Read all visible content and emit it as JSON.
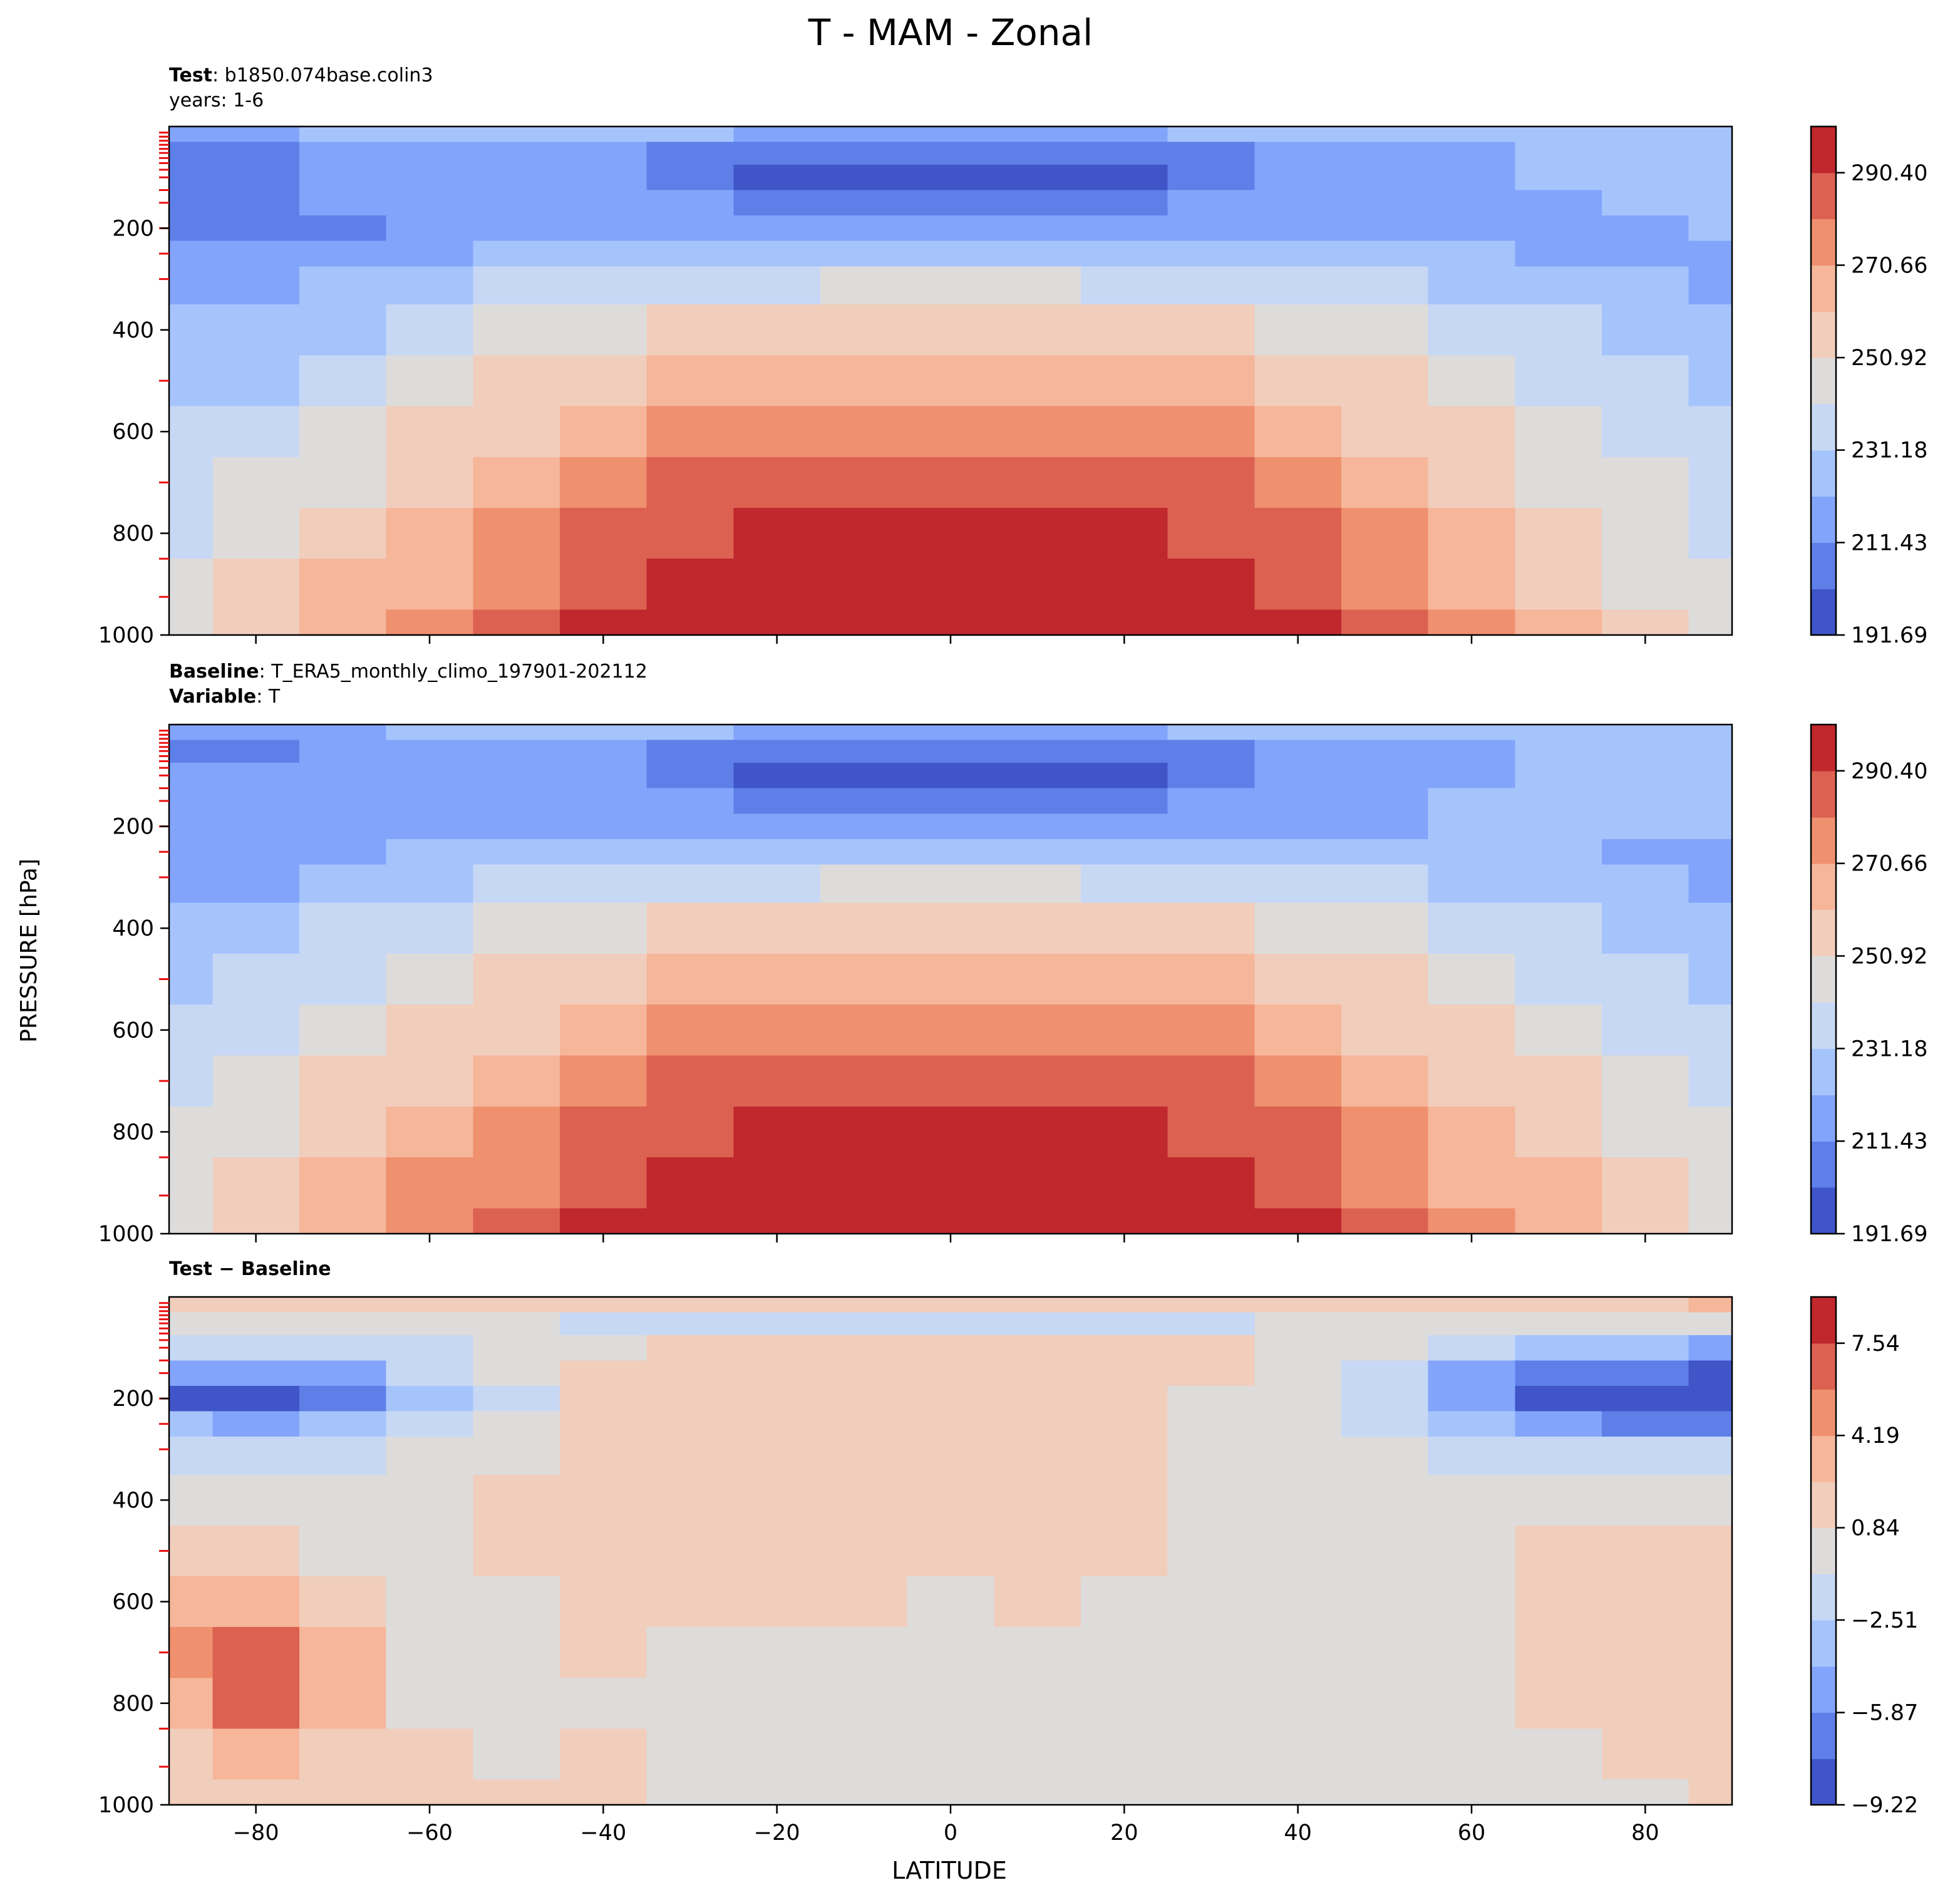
{
  "figure": {
    "title": "T - MAM - Zonal",
    "ylabel": "PRESSURE [hPa]",
    "xlabel": "LATITUDE"
  },
  "chart_data": [
    {
      "type": "heatmap",
      "id": "test",
      "header": [
        {
          "bold": "Test",
          "text": ": b1850.074base.colin3"
        },
        {
          "bold": "",
          "text": "years: 1-6"
        }
      ],
      "x": [
        -90,
        -80,
        -70,
        -60,
        -50,
        -40,
        -30,
        -20,
        -10,
        0,
        10,
        20,
        30,
        40,
        50,
        60,
        70,
        80,
        90
      ],
      "y": [
        10,
        50,
        100,
        150,
        200,
        250,
        300,
        400,
        500,
        600,
        700,
        800,
        900,
        1000
      ],
      "xlim": [
        -90,
        90
      ],
      "ylim": [
        1000,
        0
      ],
      "xticks": [
        -80,
        -60,
        -40,
        -20,
        0,
        20,
        40,
        60,
        80
      ],
      "yticks": [
        200,
        400,
        600,
        800,
        1000
      ],
      "clim": [
        191.69,
        300.27
      ],
      "colorbar_ticks": [
        191.69,
        211.43,
        231.18,
        250.92,
        270.66,
        290.4
      ],
      "colorbar_labels": [
        "191.69",
        "211.43",
        "231.18",
        "250.92",
        "270.66",
        "290.40"
      ],
      "z": [
        [
          221,
          219,
          222,
          224,
          226,
          226,
          224,
          221,
          219,
          218,
          219,
          221,
          224,
          226,
          227,
          228,
          229,
          230,
          231
        ],
        [
          211,
          209,
          213,
          216,
          218,
          214,
          210,
          207,
          205,
          204,
          205,
          207,
          210,
          214,
          218,
          220,
          222,
          223,
          224
        ],
        [
          210,
          208,
          212,
          215,
          217,
          212,
          206,
          200,
          197,
          196,
          197,
          200,
          206,
          212,
          217,
          220,
          222,
          223,
          224
        ],
        [
          209,
          207,
          212,
          215,
          217,
          215,
          212,
          209,
          207,
          206,
          207,
          209,
          212,
          215,
          217,
          219,
          221,
          222,
          223
        ],
        [
          208,
          206,
          211,
          215,
          218,
          219,
          219,
          218,
          218,
          218,
          218,
          218,
          219,
          219,
          218,
          219,
          220,
          221,
          222
        ],
        [
          214,
          214,
          217,
          221,
          225,
          228,
          230,
          231,
          231,
          231,
          231,
          231,
          230,
          228,
          225,
          223,
          221,
          220,
          219
        ],
        [
          219,
          220,
          223,
          228,
          233,
          237,
          240,
          241,
          242,
          242,
          242,
          241,
          240,
          237,
          233,
          229,
          226,
          223,
          221
        ],
        [
          224,
          226,
          231,
          238,
          244,
          249,
          252,
          254,
          254,
          255,
          254,
          254,
          252,
          249,
          244,
          239,
          234,
          229,
          226
        ],
        [
          228,
          231,
          237,
          245,
          252,
          258,
          262,
          264,
          265,
          265,
          265,
          264,
          262,
          258,
          252,
          246,
          240,
          234,
          230
        ],
        [
          232,
          237,
          243,
          251,
          259,
          266,
          271,
          274,
          275,
          275,
          275,
          274,
          271,
          266,
          259,
          252,
          245,
          238,
          233
        ],
        [
          236,
          244,
          250,
          258,
          267,
          275,
          281,
          284,
          285,
          285,
          285,
          284,
          281,
          275,
          267,
          259,
          250,
          242,
          237
        ],
        [
          240,
          249,
          256,
          264,
          274,
          283,
          289,
          292,
          293,
          294,
          293,
          292,
          289,
          283,
          274,
          265,
          255,
          246,
          240
        ],
        [
          243,
          253,
          261,
          269,
          280,
          290,
          296,
          299,
          300,
          300,
          300,
          299,
          296,
          290,
          280,
          270,
          260,
          250,
          243
        ],
        [
          245,
          256,
          265,
          273,
          285,
          295,
          300,
          300,
          300,
          300,
          300,
          300,
          300,
          295,
          285,
          274,
          264,
          253,
          246
        ]
      ]
    },
    {
      "type": "heatmap",
      "id": "baseline",
      "header": [
        {
          "bold": "Baseline",
          "text": ": T_ERA5_monthly_climo_197901-202112"
        },
        {
          "bold": "Variable",
          "text": ": T"
        }
      ],
      "x": [
        -90,
        -80,
        -70,
        -60,
        -50,
        -40,
        -30,
        -20,
        -10,
        0,
        10,
        20,
        30,
        40,
        50,
        60,
        70,
        80,
        90
      ],
      "y": [
        10,
        50,
        100,
        150,
        200,
        250,
        300,
        400,
        500,
        600,
        700,
        800,
        900,
        1000
      ],
      "xlim": [
        -90,
        90
      ],
      "ylim": [
        1000,
        0
      ],
      "xticks": [
        -80,
        -60,
        -40,
        -20,
        0,
        20,
        40,
        60,
        80
      ],
      "yticks": [
        200,
        400,
        600,
        800,
        1000
      ],
      "clim": [
        191.69,
        300.27
      ],
      "colorbar_ticks": [
        191.69,
        211.43,
        231.18,
        250.92,
        270.66,
        290.4
      ],
      "colorbar_labels": [
        "191.69",
        "211.43",
        "231.18",
        "250.92",
        "270.66",
        "290.40"
      ],
      "z": [
        [
          218,
          216,
          220,
          223,
          225,
          226,
          224,
          221,
          219,
          218,
          219,
          221,
          224,
          226,
          227,
          228,
          229,
          230,
          230
        ],
        [
          211,
          209,
          213,
          216,
          218,
          214,
          210,
          206,
          204,
          203,
          204,
          206,
          210,
          214,
          218,
          220,
          222,
          223,
          224
        ],
        [
          212,
          212,
          214,
          216,
          217,
          212,
          205,
          199,
          196,
          195,
          196,
          199,
          205,
          212,
          217,
          220,
          222,
          223,
          224
        ],
        [
          214,
          214,
          215,
          216,
          217,
          215,
          212,
          209,
          207,
          206,
          207,
          209,
          212,
          215,
          218,
          222,
          225,
          224,
          223
        ],
        [
          214,
          214,
          215,
          216,
          218,
          219,
          219,
          219,
          218,
          218,
          218,
          219,
          219,
          219,
          219,
          223,
          226,
          224,
          222
        ],
        [
          216,
          217,
          219,
          222,
          226,
          228,
          230,
          231,
          231,
          231,
          231,
          231,
          230,
          228,
          226,
          225,
          223,
          221,
          219
        ],
        [
          219,
          221,
          224,
          228,
          233,
          237,
          240,
          241,
          242,
          242,
          242,
          241,
          240,
          237,
          233,
          229,
          226,
          223,
          221
        ],
        [
          224,
          227,
          232,
          238,
          244,
          249,
          252,
          254,
          254,
          255,
          254,
          254,
          252,
          249,
          244,
          239,
          234,
          229,
          226
        ],
        [
          229,
          232,
          238,
          245,
          252,
          258,
          262,
          264,
          265,
          265,
          265,
          264,
          262,
          258,
          252,
          246,
          240,
          235,
          231
        ],
        [
          235,
          238,
          245,
          252,
          259,
          266,
          271,
          274,
          275,
          275,
          275,
          274,
          271,
          266,
          259,
          252,
          246,
          240,
          236
        ],
        [
          240,
          244,
          252,
          259,
          267,
          275,
          281,
          284,
          285,
          285,
          285,
          284,
          281,
          275,
          267,
          259,
          252,
          245,
          240
        ],
        [
          243,
          249,
          258,
          266,
          274,
          283,
          289,
          292,
          293,
          293,
          294,
          292,
          289,
          283,
          274,
          265,
          257,
          250,
          244
        ],
        [
          246,
          252,
          262,
          271,
          280,
          290,
          296,
          299,
          300,
          300,
          300,
          299,
          296,
          290,
          280,
          270,
          262,
          254,
          248
        ],
        [
          247,
          254,
          265,
          274,
          284,
          294,
          300,
          300,
          300,
          300,
          300,
          300,
          300,
          294,
          284,
          274,
          265,
          256,
          250
        ]
      ]
    },
    {
      "type": "heatmap",
      "id": "diff",
      "header": [
        {
          "bold": "Test − Baseline",
          "text": ""
        }
      ],
      "x": [
        -90,
        -80,
        -70,
        -60,
        -50,
        -40,
        -30,
        -20,
        -10,
        0,
        10,
        20,
        30,
        40,
        50,
        60,
        70,
        80,
        90
      ],
      "y": [
        10,
        50,
        100,
        150,
        200,
        250,
        300,
        400,
        500,
        600,
        700,
        800,
        900,
        1000
      ],
      "xlim": [
        -90,
        90
      ],
      "ylim": [
        1000,
        0
      ],
      "xticks": [
        -80,
        -60,
        -40,
        -20,
        0,
        20,
        40,
        60,
        80
      ],
      "yticks": [
        200,
        400,
        600,
        800,
        1000
      ],
      "clim": [
        -9.22,
        9.22
      ],
      "colorbar_ticks": [
        -9.22,
        -5.87,
        -2.51,
        0.84,
        4.19,
        7.54
      ],
      "colorbar_labels": [
        "−9.22",
        "−5.87",
        "−2.51",
        "0.84",
        "4.19",
        "7.54"
      ],
      "z": [
        [
          2.5,
          2.5,
          2.0,
          1.5,
          1.5,
          1.0,
          1.0,
          1.0,
          1.0,
          1.0,
          1.0,
          1.0,
          1.0,
          1.0,
          1.0,
          1.5,
          2.0,
          2.5,
          3.0
        ],
        [
          0.5,
          0.3,
          0.0,
          0.0,
          0.0,
          -1.0,
          -1.5,
          -1.5,
          -1.2,
          -1.0,
          -1.0,
          -1.2,
          -1.5,
          -0.5,
          0.0,
          0.0,
          0.0,
          0.5,
          0.5
        ],
        [
          -2.0,
          -2.5,
          -2.0,
          -1.0,
          0.0,
          0.5,
          1.5,
          1.5,
          1.5,
          1.5,
          1.5,
          1.5,
          1.0,
          0.5,
          -0.5,
          -1.5,
          -3.0,
          -4.0,
          -4.5
        ],
        [
          -5.0,
          -5.5,
          -4.5,
          -2.5,
          -0.5,
          1.2,
          1.5,
          1.5,
          1.5,
          1.5,
          1.5,
          1.5,
          1.0,
          0.0,
          -2.0,
          -4.5,
          -6.5,
          -7.5,
          -8.0
        ],
        [
          -8.0,
          -8.5,
          -6.5,
          -3.5,
          -1.0,
          1.0,
          1.5,
          1.5,
          1.5,
          1.5,
          1.5,
          1.2,
          0.5,
          -0.5,
          -2.5,
          -5.5,
          -8.0,
          -9.0,
          -9.0
        ],
        [
          -4.0,
          -4.5,
          -3.5,
          -2.0,
          0.0,
          1.0,
          1.5,
          1.5,
          1.5,
          1.5,
          1.5,
          1.0,
          0.5,
          -0.5,
          -2.0,
          -3.5,
          -5.0,
          -6.0,
          -6.0
        ],
        [
          -1.5,
          -1.5,
          -1.0,
          0.0,
          0.5,
          1.0,
          1.5,
          1.5,
          1.0,
          1.0,
          1.0,
          1.0,
          0.5,
          0.0,
          -0.5,
          -1.0,
          -1.5,
          -2.0,
          -2.0
        ],
        [
          0.5,
          0.5,
          0.0,
          0.0,
          1.2,
          1.5,
          1.5,
          1.2,
          1.0,
          1.0,
          1.0,
          1.0,
          0.5,
          0.5,
          0.5,
          0.5,
          0.5,
          0.5,
          0.5
        ],
        [
          1.0,
          1.0,
          0.5,
          0.0,
          1.5,
          1.5,
          1.5,
          1.5,
          1.2,
          1.0,
          1.5,
          1.0,
          0.5,
          0.5,
          0.5,
          0.5,
          1.0,
          1.5,
          1.5
        ],
        [
          3.0,
          3.5,
          2.0,
          0.5,
          0.5,
          1.5,
          1.5,
          1.2,
          1.0,
          0.5,
          1.0,
          0.5,
          0.5,
          0.5,
          0.5,
          0.5,
          1.0,
          1.5,
          1.5
        ],
        [
          5.0,
          6.0,
          3.5,
          0.5,
          0.5,
          1.5,
          0.5,
          0.5,
          0.5,
          0.5,
          0.5,
          0.5,
          0.5,
          0.5,
          0.5,
          0.5,
          1.0,
          1.5,
          1.5
        ],
        [
          4.0,
          7.5,
          3.0,
          0.5,
          0.5,
          0.5,
          0.5,
          0.5,
          0.5,
          0.5,
          0.5,
          0.5,
          -0.5,
          0.0,
          0.5,
          0.5,
          1.0,
          1.5,
          1.5
        ],
        [
          2.0,
          3.5,
          2.0,
          1.0,
          0.5,
          1.0,
          0.5,
          0.5,
          0.5,
          0.5,
          0.5,
          0.0,
          -0.5,
          -0.5,
          0.0,
          -0.5,
          0.0,
          1.0,
          1.0
        ],
        [
          1.0,
          1.5,
          1.5,
          1.5,
          1.5,
          1.2,
          0.5,
          0.5,
          0.5,
          0.5,
          0.5,
          0.0,
          -0.5,
          -0.5,
          0.0,
          -0.5,
          -0.5,
          0.5,
          1.0
        ]
      ]
    }
  ]
}
